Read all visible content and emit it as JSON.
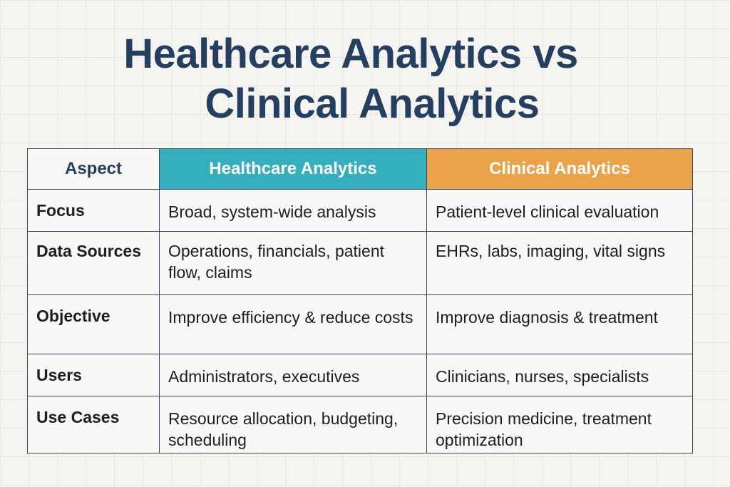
{
  "title": {
    "line1": "Healthcare Analytics vs",
    "line2": "Clinical Analytics"
  },
  "colors": {
    "title": "#243f5f",
    "healthcare_header": "#35aebd",
    "clinical_header": "#eba34a"
  },
  "table": {
    "headers": [
      "Aspect",
      "Healthcare Analytics",
      "Clinical Analytics"
    ],
    "rows": [
      [
        "Focus",
        "Broad, system-wide analysis",
        "Patient-level clinical evaluation"
      ],
      [
        "Data Sources",
        "Operations, financials, patient flow, claims",
        "EHRs, labs, imaging, vital signs"
      ],
      [
        "Objective",
        "Improve efficiency & reduce costs",
        "Improve diagnosis & treatment"
      ],
      [
        "Users",
        "Administrators, executives",
        "Clinicians, nurses, specialists"
      ],
      [
        "Use Cases",
        "Resource allocation, budgeting, scheduling",
        "Precision medicine, treatment optimization"
      ]
    ]
  }
}
